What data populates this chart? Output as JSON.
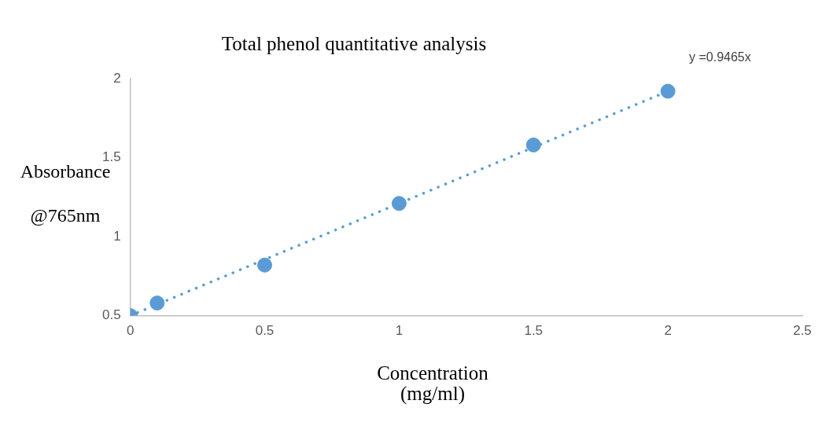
{
  "chart_data": {
    "type": "scatter",
    "title": "Total phenol quantitative analysis",
    "xlabel": "Concentration (mg/ml)",
    "ylabel": "Absorbance @765nm",
    "x": [
      0,
      0.1,
      0.5,
      1,
      1.5,
      2
    ],
    "series": [
      {
        "type": "scatter",
        "color": "#5b9bd5",
        "values": [
          0.5,
          0.58,
          0.82,
          1.21,
          1.58,
          1.92
        ]
      },
      {
        "type": "line",
        "color": "#5b9bd5",
        "x": [
          0,
          2
        ],
        "values": [
          0.5,
          1.92
        ],
        "line_style": "dotted",
        "marker": "none"
      }
    ],
    "marker": "circle",
    "xlim": [
      0,
      2.5
    ],
    "xticks": [
      0,
      0.5,
      1,
      1.5,
      2,
      2.5
    ],
    "ylim": [
      0.5,
      2
    ],
    "yticks": [
      0.5,
      1,
      1.5,
      2
    ],
    "grid": false,
    "legend": false,
    "annotations": [
      "y =0.9465x"
    ]
  }
}
